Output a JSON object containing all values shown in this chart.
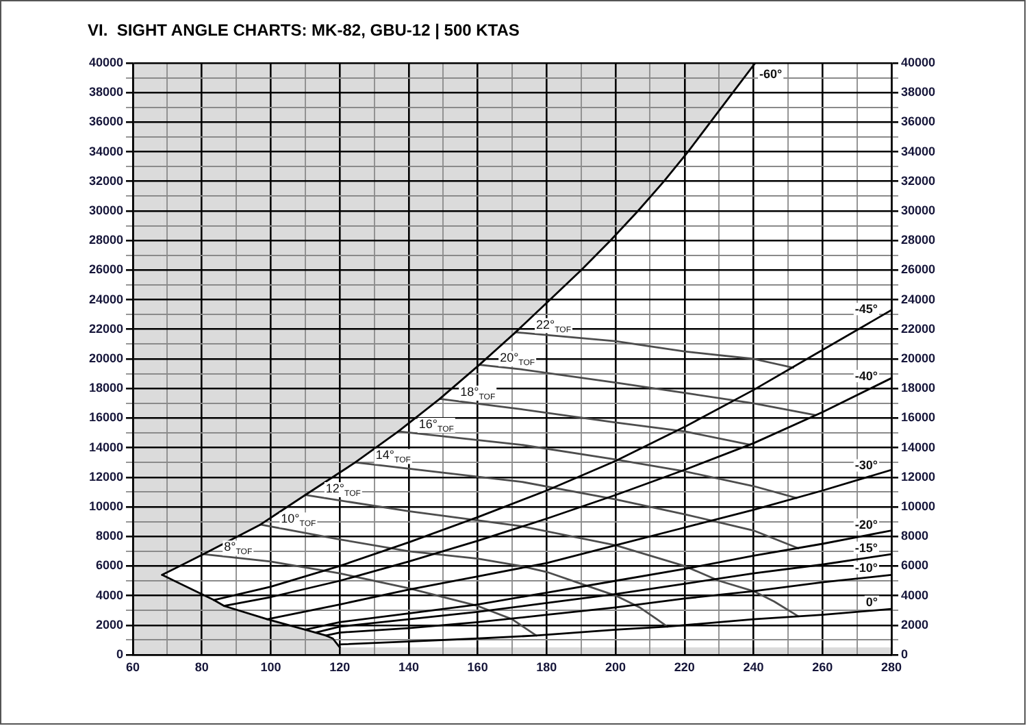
{
  "chart_data": {
    "type": "line",
    "title": "VI.  SIGHT ANGLE CHARTS: MK-82, GBU-12 | 500 KTAS",
    "xlim": [
      60,
      280
    ],
    "xticks": [
      60,
      {
        "value": 70,
        "label": null
      },
      80,
      {
        "value": 90,
        "label": null
      },
      100,
      {
        "value": 110,
        "label": null
      },
      120,
      {
        "value": 130,
        "label": null
      },
      140,
      {
        "value": 150,
        "label": null
      },
      160,
      {
        "value": 170,
        "label": null
      },
      180,
      {
        "value": 190,
        "label": null
      },
      200,
      {
        "value": 210,
        "label": null
      },
      220,
      {
        "value": 230,
        "label": null
      },
      240,
      {
        "value": 250,
        "label": null
      },
      260,
      {
        "value": 270,
        "label": null
      },
      280
    ],
    "ylim": [
      0,
      40000
    ],
    "yticks": [
      0,
      {
        "value": 1000,
        "label": null
      },
      2000,
      {
        "value": 3000,
        "label": null
      },
      4000,
      {
        "value": 5000,
        "label": null
      },
      6000,
      {
        "value": 7000,
        "label": null
      },
      8000,
      {
        "value": 9000,
        "label": null
      },
      10000,
      {
        "value": 11000,
        "label": null
      },
      12000,
      {
        "value": 13000,
        "label": null
      },
      14000,
      {
        "value": 15000,
        "label": null
      },
      16000,
      {
        "value": 17000,
        "label": null
      },
      18000,
      {
        "value": 19000,
        "label": null
      },
      20000,
      {
        "value": 21000,
        "label": null
      },
      22000,
      {
        "value": 23000,
        "label": null
      },
      24000,
      {
        "value": 25000,
        "label": null
      },
      26000,
      {
        "value": 27000,
        "label": null
      },
      28000,
      {
        "value": 29000,
        "label": null
      },
      30000,
      {
        "value": 31000,
        "label": null
      },
      32000,
      {
        "value": 33000,
        "label": null
      },
      34000,
      {
        "value": 35000,
        "label": null
      },
      36000,
      {
        "value": 37000,
        "label": null
      },
      38000,
      {
        "value": 39000,
        "label": null
      },
      40000
    ],
    "y2lim": [
      0,
      40000
    ],
    "y2ticks": [
      0,
      {
        "value": 1000,
        "label": null
      },
      2000,
      {
        "value": 3000,
        "label": null
      },
      4000,
      {
        "value": 5000,
        "label": null
      },
      6000,
      {
        "value": 7000,
        "label": null
      },
      8000,
      {
        "value": 9000,
        "label": null
      },
      10000,
      {
        "value": 11000,
        "label": null
      },
      12000,
      {
        "value": 13000,
        "label": null
      },
      14000,
      {
        "value": 15000,
        "label": null
      },
      16000,
      {
        "value": 17000,
        "label": null
      },
      18000,
      {
        "value": 19000,
        "label": null
      },
      20000,
      {
        "value": 21000,
        "label": null
      },
      22000,
      {
        "value": 23000,
        "label": null
      },
      24000,
      {
        "value": 25000,
        "label": null
      },
      26000,
      {
        "value": 27000,
        "label": null
      },
      28000,
      {
        "value": 29000,
        "label": null
      },
      30000,
      {
        "value": 31000,
        "label": null
      },
      32000,
      {
        "value": 33000,
        "label": null
      },
      34000,
      {
        "value": 35000,
        "label": null
      },
      36000,
      {
        "value": 37000,
        "label": null
      },
      38000,
      {
        "value": 39000,
        "label": null
      },
      40000
    ],
    "grid": true,
    "marker": "none",
    "line_style": "solid",
    "bands": [
      {
        "axis": "x",
        "from": 60,
        "to": 68.5,
        "color": "#dbdbdb"
      },
      {
        "axis": "y",
        "from": 0,
        "to": 500,
        "color": "#dbdbdb"
      }
    ],
    "series": [
      {
        "type": "area",
        "color": "#000000",
        "x": [
          68.5,
          83.5,
          86.5,
          99,
          110,
          113,
          116,
          118,
          120
        ],
        "values": [
          5400,
          3700,
          3300,
          2400,
          1700,
          1500,
          1300,
          1100,
          500
        ]
      },
      {
        "name": "-60°",
        "color": "#000000",
        "x": [
          68.5,
          80.5,
          97,
          110,
          124.5,
          137,
          149,
          160.5,
          171,
          181,
          190,
          198.5,
          206.5,
          214,
          221,
          227.5,
          234,
          240.5
        ],
        "values": [
          5400,
          6800,
          8800,
          10800,
          13000,
          15100,
          17300,
          19600,
          21800,
          24000,
          26000,
          28000,
          30000,
          32000,
          34000,
          36000,
          38000,
          40000
        ],
        "lower": [
          5400,
          6800,
          8800,
          10800,
          13000,
          15100,
          17300,
          19600,
          21800,
          24000,
          26000,
          28000,
          30000,
          32000,
          34000,
          36000,
          38000,
          40000
        ],
        "upper": [
          40000,
          40000,
          40000,
          40000,
          40000,
          40000,
          40000,
          40000,
          40000,
          40000,
          40000,
          40000,
          40000,
          40000,
          40000,
          40000,
          40000,
          40000
        ]
      },
      {
        "name": "-45°",
        "color": "#000000",
        "x": [
          83.5,
          100,
          120,
          140,
          160,
          180,
          200,
          220,
          240,
          260,
          280
        ],
        "values": [
          3700,
          4600,
          6000,
          7600,
          9300,
          11100,
          13100,
          15400,
          17900,
          20600,
          23300
        ]
      },
      {
        "name": "-40°",
        "color": "#000000",
        "x": [
          86.5,
          100,
          120,
          140,
          160,
          180,
          200,
          220,
          240,
          260,
          280
        ],
        "values": [
          3300,
          3900,
          5000,
          6300,
          7700,
          9200,
          10800,
          12500,
          14300,
          16400,
          18700
        ]
      },
      {
        "name": "-30°",
        "color": "#000000",
        "x": [
          99,
          120,
          140,
          160,
          180,
          200,
          220,
          240,
          260,
          280
        ],
        "values": [
          2400,
          3400,
          4400,
          5300,
          6200,
          7400,
          8600,
          9800,
          11100,
          12500
        ]
      },
      {
        "name": "-20°",
        "color": "#000000",
        "x": [
          110,
          120,
          140,
          160,
          180,
          200,
          220,
          240,
          260,
          280
        ],
        "values": [
          1700,
          2200,
          2800,
          3400,
          4200,
          5000,
          5800,
          6700,
          7500,
          8400
        ]
      },
      {
        "name": "-15°",
        "color": "#000000",
        "x": [
          113,
          120,
          140,
          160,
          180,
          200,
          220,
          240,
          260,
          280
        ],
        "values": [
          1500,
          1900,
          2400,
          2900,
          3500,
          4100,
          4800,
          5500,
          6100,
          6800
        ]
      },
      {
        "name": "-10°",
        "color": "#000000",
        "x": [
          116,
          120,
          140,
          160,
          180,
          200,
          220,
          240,
          260,
          280
        ],
        "values": [
          1300,
          1500,
          1800,
          2200,
          2700,
          3200,
          3800,
          4300,
          4900,
          5400
        ]
      },
      {
        "name": "0°",
        "color": "#000000",
        "x": [
          120,
          140,
          160,
          177,
          200,
          215,
          240,
          260,
          280
        ],
        "values": [
          700,
          900,
          1100,
          1300,
          1700,
          1900,
          2400,
          2700,
          3100
        ]
      },
      {
        "name": "8°$_{TOF}$",
        "color": "#4d4d4d",
        "x": [
          80.5,
          100,
          120,
          140,
          160,
          170,
          177
        ],
        "values": [
          6800,
          6300,
          5500,
          4500,
          3300,
          2400,
          1300
        ]
      },
      {
        "name": "10°$_{TOF}$",
        "color": "#4d4d4d",
        "x": [
          97,
          120,
          140,
          160,
          172.5,
          180,
          190,
          200,
          207,
          212,
          215
        ],
        "values": [
          8800,
          7800,
          7000,
          6500,
          6000,
          5600,
          4800,
          4000,
          3200,
          2400,
          1900
        ]
      },
      {
        "name": "12°$_{TOF}$",
        "color": "#4d4d4d",
        "x": [
          110,
          140,
          172.5,
          200,
          220,
          230,
          240,
          246,
          253
        ],
        "values": [
          10800,
          9700,
          8700,
          7400,
          6000,
          5000,
          4300,
          3600,
          2600
        ]
      },
      {
        "name": "14°$_{TOF}$",
        "color": "#4d4d4d",
        "x": [
          124.5,
          172.5,
          200,
          220,
          240,
          253
        ],
        "values": [
          13000,
          11700,
          10500,
          9500,
          8400,
          7200
        ]
      },
      {
        "name": "16°$_{TOF}$",
        "color": "#4d4d4d",
        "x": [
          137,
          172.5,
          200,
          220,
          240,
          252.5
        ],
        "values": [
          15100,
          14200,
          13200,
          12400,
          11400,
          10600
        ]
      },
      {
        "name": "18°$_{TOF}$",
        "color": "#4d4d4d",
        "x": [
          149,
          172.5,
          200,
          220,
          239
        ],
        "values": [
          17300,
          16600,
          15700,
          15100,
          14200
        ]
      },
      {
        "name": "20°$_{TOF}$",
        "color": "#4d4d4d",
        "x": [
          160.5,
          172.5,
          200,
          220,
          240,
          258
        ],
        "values": [
          19600,
          19300,
          18400,
          17700,
          17000,
          16200
        ]
      },
      {
        "name": "22°$_{TOF}$",
        "color": "#4d4d4d",
        "x": [
          171,
          200,
          220,
          240,
          251.5
        ],
        "values": [
          21800,
          21200,
          20500,
          20000,
          19400
        ]
      }
    ]
  }
}
